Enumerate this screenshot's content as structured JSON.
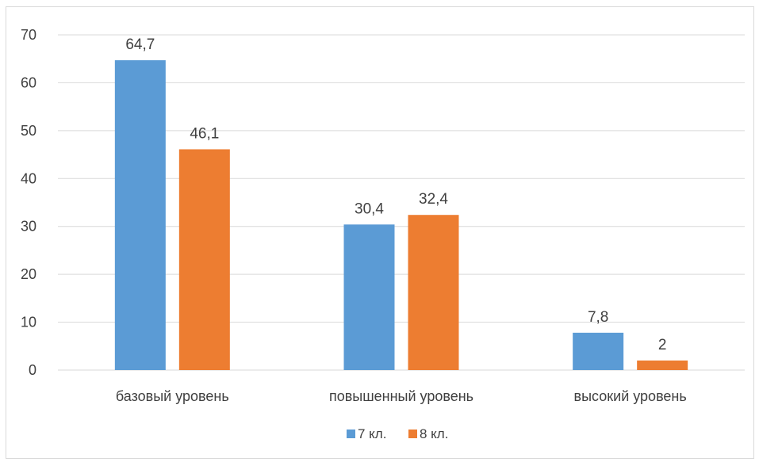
{
  "chart_data": {
    "type": "bar",
    "categories": [
      "базовый уровень",
      "повышенный уровень",
      "высокий уровень"
    ],
    "series": [
      {
        "name": "7 кл.",
        "values": [
          64.7,
          30.4,
          7.8
        ],
        "labels": [
          "64,7",
          "30,4",
          "7,8"
        ],
        "color": "#5b9bd5"
      },
      {
        "name": "8 кл.",
        "values": [
          46.1,
          32.4,
          2
        ],
        "labels": [
          "46,1",
          "32,4",
          "2"
        ],
        "color": "#ed7d31"
      }
    ],
    "ylim": [
      0,
      70
    ],
    "yticks": [
      0,
      10,
      20,
      30,
      40,
      50,
      60,
      70
    ],
    "grid": true,
    "legend_position": "bottom",
    "gridline_color": "#d9d9d9",
    "axis_line_color": "#d9d9d9"
  }
}
